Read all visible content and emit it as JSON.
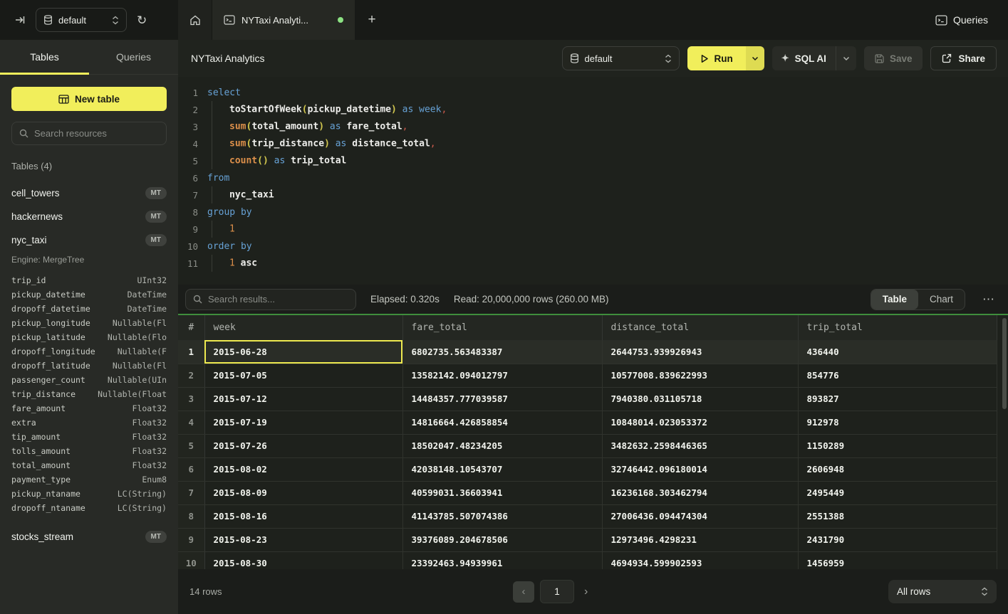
{
  "colors": {
    "accent_yellow": "#f1ee5b",
    "run_caret_yellow": "#dedb52",
    "success_green": "#3f8e3c",
    "tab_green_dot": "#8ce283",
    "selected_cell_border": "#ede94f"
  },
  "topbar": {
    "database": "default",
    "tab_title": "NYTaxi Analyti...",
    "queries_label": "Queries",
    "add_tab_label": "+"
  },
  "sidebar": {
    "tabs": {
      "tables": "Tables",
      "queries": "Queries"
    },
    "new_table_label": "New table",
    "search_placeholder": "Search resources",
    "section_title": "Tables (4)",
    "tables": [
      {
        "name": "cell_towers",
        "badge": "MT"
      },
      {
        "name": "hackernews",
        "badge": "MT"
      },
      {
        "name": "nyc_taxi",
        "badge": "MT"
      },
      {
        "name": "stocks_stream",
        "badge": "MT"
      }
    ],
    "nyc_taxi_engine": "Engine: MergeTree",
    "nyc_taxi_columns": [
      [
        "trip_id",
        "UInt32"
      ],
      [
        "pickup_datetime",
        "DateTime"
      ],
      [
        "dropoff_datetime",
        "DateTime"
      ],
      [
        "pickup_longitude",
        "Nullable(Fl"
      ],
      [
        "pickup_latitude",
        "Nullable(Flo"
      ],
      [
        "dropoff_longitude",
        "Nullable(F"
      ],
      [
        "dropoff_latitude",
        "Nullable(Fl"
      ],
      [
        "passenger_count",
        "Nullable(UIn"
      ],
      [
        "trip_distance",
        "Nullable(Float"
      ],
      [
        "fare_amount",
        "Float32"
      ],
      [
        "extra",
        "Float32"
      ],
      [
        "tip_amount",
        "Float32"
      ],
      [
        "tolls_amount",
        "Float32"
      ],
      [
        "total_amount",
        "Float32"
      ],
      [
        "payment_type",
        "Enum8"
      ],
      [
        "pickup_ntaname",
        "LC(String)"
      ],
      [
        "dropoff_ntaname",
        "LC(String)"
      ]
    ]
  },
  "query_header": {
    "title": "NYTaxi Analytics",
    "database": "default",
    "run_label": "Run",
    "sql_ai_label": "SQL AI",
    "save_label": "Save",
    "share_label": "Share"
  },
  "sql": {
    "lines": [
      [
        [
          "kw",
          "select"
        ]
      ],
      [
        [
          "ind",
          ""
        ],
        [
          "id",
          "toStartOfWeek"
        ],
        [
          "par",
          "("
        ],
        [
          "id",
          "pickup_datetime"
        ],
        [
          "par",
          ")"
        ],
        [
          "kw",
          " as "
        ],
        [
          "kw",
          "week"
        ],
        [
          "pun",
          ","
        ]
      ],
      [
        [
          "ind",
          ""
        ],
        [
          "fn",
          "sum"
        ],
        [
          "par",
          "("
        ],
        [
          "id",
          "total_amount"
        ],
        [
          "par",
          ")"
        ],
        [
          "kw",
          " as "
        ],
        [
          "id",
          "fare_total"
        ],
        [
          "pun",
          ","
        ]
      ],
      [
        [
          "ind",
          ""
        ],
        [
          "fn",
          "sum"
        ],
        [
          "par",
          "("
        ],
        [
          "id",
          "trip_distance"
        ],
        [
          "par",
          ")"
        ],
        [
          "kw",
          " as "
        ],
        [
          "id",
          "distance_total"
        ],
        [
          "pun",
          ","
        ]
      ],
      [
        [
          "ind",
          ""
        ],
        [
          "fn",
          "count"
        ],
        [
          "par",
          "()"
        ],
        [
          "kw",
          " as "
        ],
        [
          "id",
          "trip_total"
        ]
      ],
      [
        [
          "kw",
          "from"
        ]
      ],
      [
        [
          "ind",
          ""
        ],
        [
          "id",
          "nyc_taxi"
        ]
      ],
      [
        [
          "kw",
          "group by"
        ]
      ],
      [
        [
          "ind",
          ""
        ],
        [
          "num",
          "1"
        ]
      ],
      [
        [
          "kw",
          "order by"
        ]
      ],
      [
        [
          "ind",
          ""
        ],
        [
          "num",
          "1"
        ],
        [
          "id",
          " asc"
        ]
      ]
    ]
  },
  "results": {
    "search_placeholder": "Search results...",
    "elapsed": "Elapsed: 0.320s",
    "read": "Read: 20,000,000 rows (260.00 MB)",
    "view_tabs": {
      "table": "Table",
      "chart": "Chart"
    },
    "more_label": "⋯",
    "table": {
      "headers": [
        "#",
        "week",
        "fare_total",
        "distance_total",
        "trip_total"
      ],
      "rows": [
        [
          "2015-06-28",
          "6802735.563483387",
          "2644753.939926943",
          "436440"
        ],
        [
          "2015-07-05",
          "13582142.094012797",
          "10577008.839622993",
          "854776"
        ],
        [
          "2015-07-12",
          "14484357.777039587",
          "7940380.031105718",
          "893827"
        ],
        [
          "2015-07-19",
          "14816664.426858854",
          "10848014.023053372",
          "912978"
        ],
        [
          "2015-07-26",
          "18502047.48234205",
          "3482632.2598446365",
          "1150289"
        ],
        [
          "2015-08-02",
          "42038148.10543707",
          "32746442.096180014",
          "2606948"
        ],
        [
          "2015-08-09",
          "40599031.36603941",
          "16236168.303462794",
          "2495449"
        ],
        [
          "2015-08-16",
          "41143785.507074386",
          "27006436.094474304",
          "2551388"
        ],
        [
          "2015-08-23",
          "39376089.204678506",
          "12973496.4298231",
          "2431790"
        ],
        [
          "2015-08-30",
          "23392463.94939961",
          "4694934.599902593",
          "1456959"
        ]
      ]
    },
    "footer": {
      "row_count": "14 rows",
      "prev_label": "‹",
      "page": "1",
      "next_label": "›",
      "page_size": "All rows"
    }
  }
}
